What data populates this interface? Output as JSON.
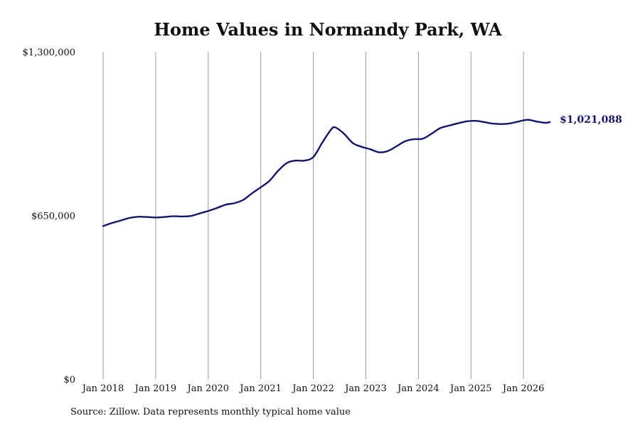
{
  "title": "Home Values in Normandy Park, WA",
  "source_note": "Source: Zillow. Data represents monthly typical home value",
  "colors": {
    "line": "#14146b",
    "grid": "#999999",
    "text": "#111111"
  },
  "chart_data": {
    "type": "line",
    "title": "Home Values in Normandy Park, WA",
    "xlabel": "",
    "ylabel": "",
    "ylim": [
      0,
      1300000
    ],
    "y_ticks": [
      {
        "value": 0,
        "label": "$0"
      },
      {
        "value": 650000,
        "label": "$650,000"
      },
      {
        "value": 1300000,
        "label": "$1,300,000"
      }
    ],
    "x_ticks": [
      {
        "date": "2018-01",
        "label": "Jan 2018"
      },
      {
        "date": "2019-01",
        "label": "Jan 2019"
      },
      {
        "date": "2020-01",
        "label": "Jan 2020"
      },
      {
        "date": "2021-01",
        "label": "Jan 2021"
      },
      {
        "date": "2022-01",
        "label": "Jan 2022"
      },
      {
        "date": "2023-01",
        "label": "Jan 2023"
      },
      {
        "date": "2024-01",
        "label": "Jan 2024"
      },
      {
        "date": "2025-01",
        "label": "Jan 2025"
      },
      {
        "date": "2026-01",
        "label": "Jan 2026"
      }
    ],
    "grid": "vertical",
    "end_label": "$1,021,088",
    "series": [
      {
        "points": [
          [
            "2018-01",
            608000
          ],
          [
            "2018-03",
            620000
          ],
          [
            "2018-05",
            630000
          ],
          [
            "2018-07",
            640000
          ],
          [
            "2018-09",
            645000
          ],
          [
            "2018-11",
            644000
          ],
          [
            "2019-01",
            642000
          ],
          [
            "2019-03",
            644000
          ],
          [
            "2019-05",
            647000
          ],
          [
            "2019-07",
            646000
          ],
          [
            "2019-09",
            648000
          ],
          [
            "2019-11",
            658000
          ],
          [
            "2020-01",
            668000
          ],
          [
            "2020-03",
            680000
          ],
          [
            "2020-05",
            693000
          ],
          [
            "2020-07",
            699000
          ],
          [
            "2020-09",
            712000
          ],
          [
            "2020-11",
            738000
          ],
          [
            "2021-01",
            762000
          ],
          [
            "2021-03",
            788000
          ],
          [
            "2021-05",
            828000
          ],
          [
            "2021-07",
            859000
          ],
          [
            "2021-09",
            868000
          ],
          [
            "2021-11",
            868000
          ],
          [
            "2022-01",
            882000
          ],
          [
            "2022-03",
            938000
          ],
          [
            "2022-05",
            990000
          ],
          [
            "2022-06",
            1000000
          ],
          [
            "2022-08",
            975000
          ],
          [
            "2022-10",
            938000
          ],
          [
            "2022-12",
            923000
          ],
          [
            "2023-02",
            913000
          ],
          [
            "2023-04",
            901000
          ],
          [
            "2023-06",
            906000
          ],
          [
            "2023-08",
            925000
          ],
          [
            "2023-10",
            945000
          ],
          [
            "2023-12",
            953000
          ],
          [
            "2024-02",
            955000
          ],
          [
            "2024-04",
            975000
          ],
          [
            "2024-06",
            997000
          ],
          [
            "2024-08",
            1007000
          ],
          [
            "2024-10",
            1016000
          ],
          [
            "2024-12",
            1024000
          ],
          [
            "2025-02",
            1026000
          ],
          [
            "2025-04",
            1021000
          ],
          [
            "2025-06",
            1015000
          ],
          [
            "2025-08",
            1013000
          ],
          [
            "2025-10",
            1016000
          ],
          [
            "2025-12",
            1024000
          ],
          [
            "2026-02",
            1030000
          ],
          [
            "2026-04",
            1023000
          ],
          [
            "2026-06",
            1018000
          ],
          [
            "2026-07",
            1021088
          ]
        ]
      }
    ]
  }
}
